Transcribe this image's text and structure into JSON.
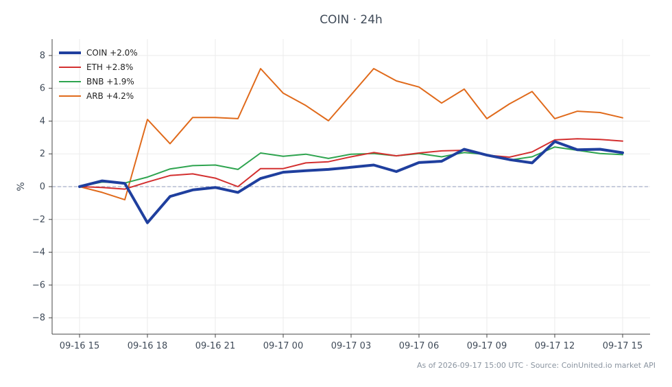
{
  "title": "COIN · 24h",
  "footer": "As of 2026-09-17 15:00 UTC · Source: CoinUnited.io market API",
  "chart_data": {
    "type": "line",
    "title": "COIN · 24h",
    "xlabel": "",
    "ylabel": "%",
    "xlim": [
      "09-16 15",
      "09-17 15"
    ],
    "ylim": [
      -9,
      9
    ],
    "yticks": [
      -8,
      -6,
      -4,
      -2,
      0,
      2,
      4,
      6,
      8
    ],
    "xticks": [
      "09-16 15",
      "09-16 18",
      "09-16 21",
      "09-17 00",
      "09-17 03",
      "09-17 06",
      "09-17 09",
      "09-17 12",
      "09-17 15"
    ],
    "x": [
      "09-16 15",
      "09-16 16",
      "09-16 17",
      "09-16 18",
      "09-16 19",
      "09-16 20",
      "09-16 21",
      "09-16 22",
      "09-16 23",
      "09-17 00",
      "09-17 01",
      "09-17 02",
      "09-17 03",
      "09-17 04",
      "09-17 05",
      "09-17 06",
      "09-17 07",
      "09-17 08",
      "09-17 09",
      "09-17 10",
      "09-17 11",
      "09-17 12",
      "09-17 13",
      "09-17 14",
      "09-17 15"
    ],
    "grid": true,
    "zero_line": true,
    "legend_position": "top-left",
    "series": [
      {
        "name": "COIN +2.0%",
        "color": "#1f3f9e",
        "values": [
          0.0,
          0.35,
          0.2,
          -2.2,
          -0.6,
          -0.2,
          -0.05,
          -0.35,
          0.5,
          0.88,
          0.97,
          1.05,
          1.18,
          1.32,
          0.92,
          1.47,
          1.55,
          2.28,
          1.92,
          1.65,
          1.45,
          2.75,
          2.25,
          2.28,
          2.07
        ]
      },
      {
        "name": "ETH +2.8%",
        "color": "#d32f2f",
        "values": [
          0.0,
          -0.05,
          -0.15,
          0.28,
          0.68,
          0.78,
          0.52,
          0.0,
          1.1,
          1.1,
          1.45,
          1.52,
          1.82,
          2.08,
          1.88,
          2.05,
          2.18,
          2.22,
          1.92,
          1.8,
          2.12,
          2.85,
          2.92,
          2.88,
          2.78
        ]
      },
      {
        "name": "BNB +1.9%",
        "color": "#2ea44f",
        "values": [
          0.0,
          0.28,
          0.22,
          0.58,
          1.08,
          1.28,
          1.32,
          1.05,
          2.05,
          1.85,
          1.98,
          1.72,
          1.98,
          2.02,
          1.88,
          2.02,
          1.82,
          2.08,
          1.96,
          1.62,
          1.82,
          2.42,
          2.22,
          2.02,
          1.95
        ]
      },
      {
        "name": "ARB +4.2%",
        "color": "#e06a1b",
        "values": [
          0.0,
          -0.35,
          -0.8,
          4.1,
          2.62,
          4.22,
          4.22,
          4.15,
          7.2,
          5.7,
          4.95,
          4.02,
          5.6,
          7.2,
          6.45,
          6.08,
          5.1,
          5.95,
          4.15,
          5.05,
          5.8,
          4.15,
          4.6,
          4.52,
          4.2
        ]
      }
    ]
  }
}
